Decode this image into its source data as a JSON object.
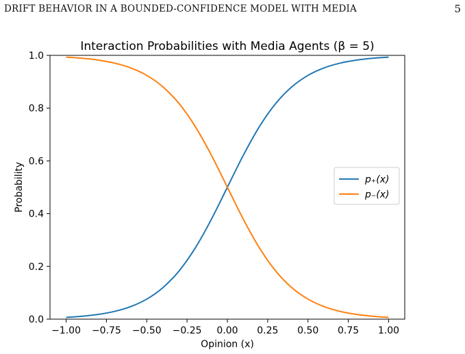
{
  "page": {
    "running_head": "DRIFT BEHAVIOR IN A BOUNDED-CONFIDENCE MODEL WITH MEDIA",
    "page_number": "5"
  },
  "chart_data": {
    "type": "line",
    "title": "Interaction Probabilities with Media Agents (β = 5)",
    "xlabel": "Opinion (x)",
    "ylabel": "Probability",
    "xlim": [
      -1.1,
      1.1
    ],
    "ylim": [
      0.0,
      1.0
    ],
    "xticks": [
      -1.0,
      -0.75,
      -0.5,
      -0.25,
      0.0,
      0.25,
      0.5,
      0.75,
      1.0
    ],
    "xtick_labels": [
      "−1.00",
      "−0.75",
      "−0.50",
      "−0.25",
      "0.00",
      "0.25",
      "0.50",
      "0.75",
      "1.00"
    ],
    "yticks": [
      0.0,
      0.2,
      0.4,
      0.6,
      0.8,
      1.0
    ],
    "ytick_labels": [
      "0.0",
      "0.2",
      "0.4",
      "0.6",
      "0.8",
      "1.0"
    ],
    "grid": false,
    "legend_position": "center-right",
    "x": [
      -1.0,
      -0.9,
      -0.8,
      -0.7,
      -0.6,
      -0.5,
      -0.4,
      -0.3,
      -0.2,
      -0.1,
      0.0,
      0.1,
      0.2,
      0.3,
      0.4,
      0.5,
      0.6,
      0.7,
      0.8,
      0.9,
      1.0
    ],
    "series": [
      {
        "name": "p₊(x)",
        "color": "#1f77b4",
        "values": [
          0.0067,
          0.011,
          0.018,
          0.0293,
          0.0474,
          0.0759,
          0.1192,
          0.1824,
          0.2689,
          0.3775,
          0.5,
          0.6225,
          0.7311,
          0.8176,
          0.8808,
          0.9241,
          0.9526,
          0.9707,
          0.982,
          0.989,
          0.9933
        ]
      },
      {
        "name": "p₋(x)",
        "color": "#ff7f0e",
        "values": [
          0.9933,
          0.989,
          0.982,
          0.9707,
          0.9526,
          0.9241,
          0.8808,
          0.8176,
          0.7311,
          0.6225,
          0.5,
          0.3775,
          0.2689,
          0.1824,
          0.1192,
          0.0759,
          0.0474,
          0.0293,
          0.018,
          0.011,
          0.0067
        ]
      }
    ]
  }
}
